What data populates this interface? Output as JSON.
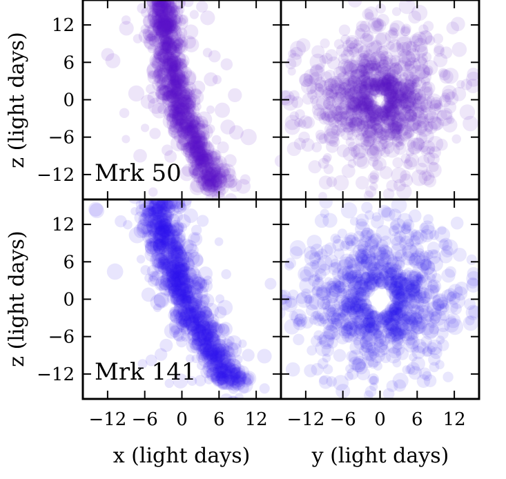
{
  "chart_data": {
    "type": "scatter",
    "title": "",
    "xlabel_left": "x (light days)",
    "xlabel_right": "y (light days)",
    "ylabel": "z (light days)",
    "xlim": [
      -16,
      16
    ],
    "ylim": [
      -16,
      16
    ],
    "tick_values": [
      -12,
      -6,
      0,
      6,
      12
    ],
    "tick_labels": [
      "−12",
      "−6",
      "0",
      "6",
      "12"
    ],
    "grid": false,
    "rows": [
      {
        "label": "Mrk 50",
        "color": "#5a12c8",
        "xz_panel": {
          "description_points": [
            [
              -3,
              16
            ],
            [
              -2.8,
              14
            ],
            [
              -2.6,
              12
            ],
            [
              -2.4,
              10
            ],
            [
              -2.2,
              8
            ],
            [
              -2,
              6
            ],
            [
              -1.6,
              4
            ],
            [
              -1.2,
              2
            ],
            [
              -0.6,
              0
            ],
            [
              0,
              -2
            ],
            [
              0.8,
              -4
            ],
            [
              1.6,
              -6
            ],
            [
              2.4,
              -8
            ],
            [
              3.4,
              -10
            ],
            [
              4.4,
              -12
            ],
            [
              5.6,
              -14
            ]
          ],
          "spread": 1.2
        },
        "yz_panel": {
          "ring_inner": 1.5,
          "ring_outer": 16
        }
      },
      {
        "label": "Mrk 141",
        "color": "#2a12ee",
        "xz_panel": {
          "description_points": [
            [
              -4,
              16
            ],
            [
              -3.6,
              14
            ],
            [
              -3.2,
              12
            ],
            [
              -2.8,
              10
            ],
            [
              -2.2,
              8
            ],
            [
              -1.6,
              6
            ],
            [
              -1,
              4
            ],
            [
              -0.2,
              2
            ],
            [
              0.6,
              0
            ],
            [
              1.4,
              -2
            ],
            [
              2.4,
              -4
            ],
            [
              3.4,
              -6
            ],
            [
              4.6,
              -8
            ],
            [
              5.8,
              -10
            ],
            [
              7,
              -12
            ],
            [
              8.4,
              -14
            ]
          ],
          "spread": 1.5
        },
        "yz_panel": {
          "ring_inner": 2.5,
          "ring_outer": 16
        }
      }
    ]
  }
}
